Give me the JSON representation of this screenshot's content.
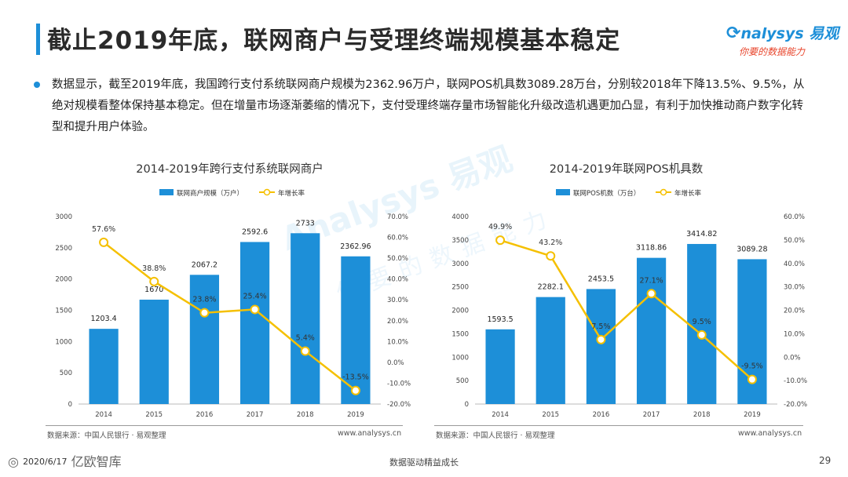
{
  "page": {
    "title": "截止2019年底，联网商户与受理终端规模基本稳定",
    "logo_brand": "nalysys 易观",
    "logo_slogan": "你要的数据能力",
    "paragraph": "数据显示，截至2019年底，我国跨行支付系统联网商户规模为2362.96万户，联网POS机具数3089.28万台，分别较2018年下降13.5%、9.5%，从绝对规模看整体保持基本稳定。但在增量市场逐渐萎缩的情况下，支付受理终端存量市场智能化升级改造机遇更加凸显，有利于加快推动商户数字化转型和提升用户体验。",
    "watermark_text": "Analysys 易观",
    "watermark_sub": "你要的数据能力",
    "footer": {
      "source_left": "数据来源：中国人民银行 · 易观整理",
      "site_left": "www.analysys.cn",
      "source_right": "数据来源：中国人民银行 · 易观整理",
      "site_right": "www.analysys.cn",
      "brand_left": "亿欧智库",
      "date": "2020/6/17",
      "center": "数据驱动精益成长",
      "page_number": "29"
    },
    "colors": {
      "accent": "#1d8fd8",
      "line": "#f5c000"
    }
  },
  "chart_data": [
    {
      "type": "bar",
      "title": "2014-2019年跨行支付系统联网商户",
      "categories": [
        "2014",
        "2015",
        "2016",
        "2017",
        "2018",
        "2019"
      ],
      "series": [
        {
          "name": "联网商户规模（万户）",
          "type": "bar",
          "axis": "left",
          "values": [
            1203.4,
            1670,
            2067.2,
            2592.6,
            2733,
            2362.96
          ],
          "labels": [
            "1203.4",
            "1670",
            "2067.2",
            "2592.6",
            "2733",
            "2362.96"
          ]
        },
        {
          "name": "年增长率",
          "type": "line",
          "axis": "right",
          "values": [
            57.6,
            38.8,
            23.8,
            25.4,
            5.4,
            -13.5
          ],
          "labels": [
            "57.6%",
            "38.8%",
            "23.8%",
            "25.4%",
            "5.4%",
            "-13.5%"
          ]
        }
      ],
      "y_left": {
        "min": 0,
        "max": 3000,
        "step": 500,
        "ticks": [
          "0",
          "500",
          "1000",
          "1500",
          "2000",
          "2500",
          "3000"
        ]
      },
      "y_right": {
        "min": -20,
        "max": 70,
        "step": 10,
        "ticks": [
          "-20.0%",
          "-10.0%",
          "0.0%",
          "10.0%",
          "20.0%",
          "30.0%",
          "40.0%",
          "50.0%",
          "60.0%",
          "70.0%"
        ]
      },
      "legend_position": "top-center"
    },
    {
      "type": "bar",
      "title": "2014-2019年联网POS机具数",
      "categories": [
        "2014",
        "2015",
        "2016",
        "2017",
        "2018",
        "2019"
      ],
      "series": [
        {
          "name": "联网POS机数（万台）",
          "type": "bar",
          "axis": "left",
          "values": [
            1593.5,
            2282.1,
            2453.5,
            3118.86,
            3414.82,
            3089.28
          ],
          "labels": [
            "1593.5",
            "2282.1",
            "2453.5",
            "3118.86",
            "3414.82",
            "3089.28"
          ]
        },
        {
          "name": "年增长率",
          "type": "line",
          "axis": "right",
          "values": [
            49.9,
            43.2,
            7.5,
            27.1,
            9.5,
            -9.5
          ],
          "labels": [
            "49.9%",
            "43.2%",
            "7.5%",
            "27.1%",
            "9.5%",
            "-9.5%"
          ]
        }
      ],
      "y_left": {
        "min": 0,
        "max": 4000,
        "step": 500,
        "ticks": [
          "0",
          "500",
          "1000",
          "1500",
          "2000",
          "2500",
          "3000",
          "3500",
          "4000"
        ]
      },
      "y_right": {
        "min": -20,
        "max": 60,
        "step": 10,
        "ticks": [
          "-20.0%",
          "-10.0%",
          "0.0%",
          "10.0%",
          "20.0%",
          "30.0%",
          "40.0%",
          "50.0%",
          "60.0%"
        ]
      },
      "legend_position": "top-center"
    }
  ]
}
